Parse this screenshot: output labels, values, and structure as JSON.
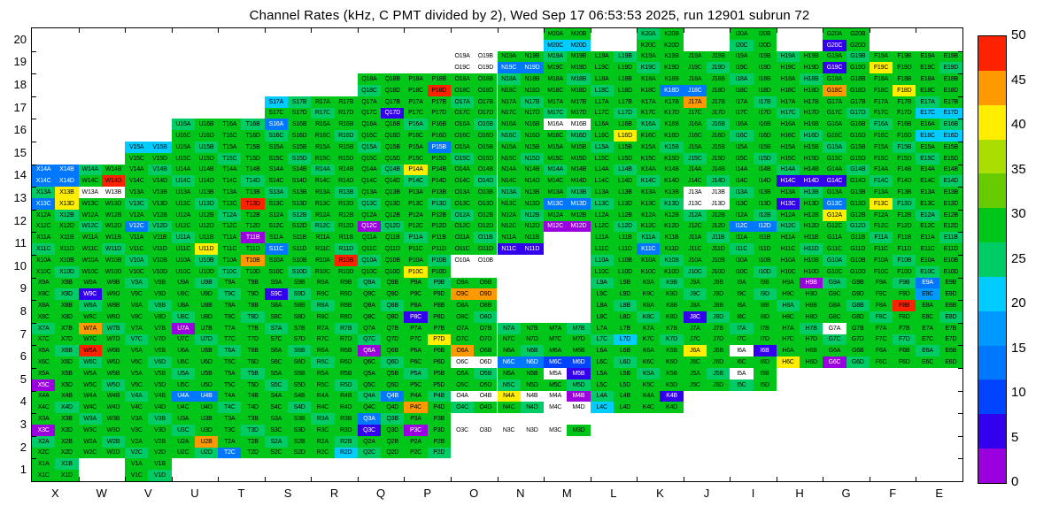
{
  "title": "Channel Rates (kHz, C PMT divided by 2), Wed Sep 17 06:53:53 2025, run 12901 subrun 72",
  "chart_data": {
    "type": "heatmap",
    "unit": "kHz",
    "columns": [
      "X",
      "W",
      "V",
      "U",
      "T",
      "S",
      "R",
      "Q",
      "P",
      "O",
      "N",
      "M",
      "L",
      "K",
      "J",
      "I",
      "H",
      "G",
      "F",
      "E"
    ],
    "rows": [
      20,
      19,
      18,
      17,
      16,
      15,
      14,
      13,
      12,
      11,
      10,
      9,
      8,
      7,
      6,
      5,
      4,
      3,
      2,
      1
    ],
    "subchannels": [
      "A",
      "B",
      "C",
      "D"
    ],
    "default_rate_min": 26,
    "default_rate_spread": 5,
    "row_extent": {
      "20": [
        "M",
        "K",
        "I",
        "G"
      ],
      "19": {
        "from": "O",
        "to": "E"
      },
      "18": {
        "from": "Q",
        "to": "E"
      },
      "17": {
        "from": "S",
        "to": "E"
      },
      "16": {
        "from": "U",
        "to": "E"
      },
      "15": {
        "from": "V",
        "to": "E"
      },
      "14": {
        "from": "X",
        "to": "E"
      },
      "13": {
        "from": "X",
        "to": "E"
      },
      "12": {
        "from": "X",
        "to": "E"
      },
      "11": {
        "from": "X",
        "to": "E"
      },
      "10": {
        "from": "X",
        "to": "E"
      },
      "9": {
        "from": "X",
        "to": "E"
      },
      "8": {
        "from": "X",
        "to": "E"
      },
      "7": {
        "from": "X",
        "to": "E"
      },
      "6": {
        "from": "X",
        "to": "E"
      },
      "5": {
        "from": "X",
        "to": "I"
      },
      "4": {
        "from": "X",
        "to": "K"
      },
      "3": {
        "from": "X",
        "to": "M"
      },
      "2": {
        "from": "X",
        "to": "P"
      },
      "1": [
        "X",
        "V"
      ]
    },
    "missing_cells": [
      "M8A",
      "M8B",
      "M8C",
      "M8D",
      "N8A",
      "N8B",
      "N8C",
      "N8D",
      "M9A",
      "M9B",
      "M9C",
      "M9D",
      "N9A",
      "N9B",
      "N9C",
      "N9D",
      "M10A",
      "M10B",
      "M10C",
      "M10D",
      "N10A",
      "N10B",
      "N10C",
      "N10D",
      "M11A",
      "M11B",
      "M11C",
      "M11D",
      "O10C",
      "O10D",
      "O3A",
      "O3B",
      "N3A",
      "N3B",
      "M3A",
      "M3B"
    ],
    "zero_rate_cells": [
      "O19A",
      "O19B",
      "O19C",
      "O19D",
      "W13A",
      "W13B",
      "J13A",
      "J13B",
      "J13C",
      "J13D",
      "M16A",
      "M16B",
      "O10A",
      "O10B",
      "I6A",
      "G7A",
      "M5A",
      "I5A",
      "N4B",
      "M4A",
      "M4C",
      "M4D",
      "O4A",
      "O4B",
      "O3C",
      "O3D",
      "N3C",
      "N3D",
      "M3C",
      "O6C",
      "O6D"
    ],
    "cell_rates": {
      "X14A": 12,
      "X14B": 12,
      "X14C": 12,
      "X14D": 12,
      "W14D": 48,
      "H14C": 7,
      "H14D": 7,
      "G14C": 7,
      "P14A": 39,
      "X13B": 39,
      "X13C": 13,
      "X13D": 39,
      "T13D": 48,
      "F13C": 39,
      "H13C": 7,
      "G13C": 13,
      "M13C": 13,
      "M13D": 13,
      "V12C": 13,
      "Q12C": 1,
      "M12C": 2,
      "M12D": 2,
      "G12A": 39,
      "I12C": 13,
      "I12D": 13,
      "U11D": 39,
      "T11B": 1,
      "S11C": 13,
      "N11C": 5,
      "N11D": 5,
      "K11C": 13,
      "P10C": 39,
      "T10B": 43,
      "R10B": 47,
      "W9C": 5,
      "S9C": 5,
      "O9C": 43,
      "O9D": 43,
      "H9B": 1,
      "E9A": 13,
      "E9C": 17,
      "P8C": 5,
      "J8C": 5,
      "F8B": 47,
      "W7A": 44,
      "U7A": 1,
      "P7D": 39,
      "L7D": 22,
      "W6A": 47,
      "Q6A": 1,
      "O6A": 43,
      "J6A": 39,
      "I6B": 5,
      "H6C": 39,
      "G6C": 2,
      "M6C": 8,
      "M6D": 8,
      "N6C": 13,
      "N6D": 13,
      "X5C": 1,
      "M5B": 5,
      "U4A": 13,
      "U4B": 13,
      "Q4B": 13,
      "N4A": 39,
      "M4B": 2,
      "P4C": 43,
      "L4C": 22,
      "K4B": 5,
      "X3C": 1,
      "Q3A": 13,
      "Q3C": 5,
      "P3C": 2,
      "M3D": 27,
      "U2B": 43,
      "T2C": 13,
      "R2D": 22,
      "M20C": 22,
      "M20D": 22,
      "G20C": 5,
      "N19C": 13,
      "N19D": 13,
      "G19C": 5,
      "F19C": 41,
      "P18D": 47,
      "K18D": 13,
      "J18C": 13,
      "G18C": 43,
      "F18D": 39,
      "S17A": 22,
      "Q17D": 5,
      "J17A": 43,
      "E17C": 22,
      "E17D": 22,
      "S16A": 13,
      "L16D": 39,
      "E16C": 22,
      "E16D": 22,
      "V15A": 22,
      "V15B": 22,
      "P15B": 13
    },
    "colorbar": {
      "min": 0,
      "max": 50,
      "ticks": [
        0,
        5,
        10,
        15,
        20,
        25,
        30,
        35,
        40,
        45,
        50
      ],
      "palette": [
        "#9900dd",
        "#3300ee",
        "#0044ff",
        "#0077ff",
        "#0099ff",
        "#00ccff",
        "#00cc66",
        "#00c619",
        "#66cc00",
        "#aadd00",
        "#ffee00",
        "#ff9900",
        "#ff2200"
      ]
    }
  }
}
